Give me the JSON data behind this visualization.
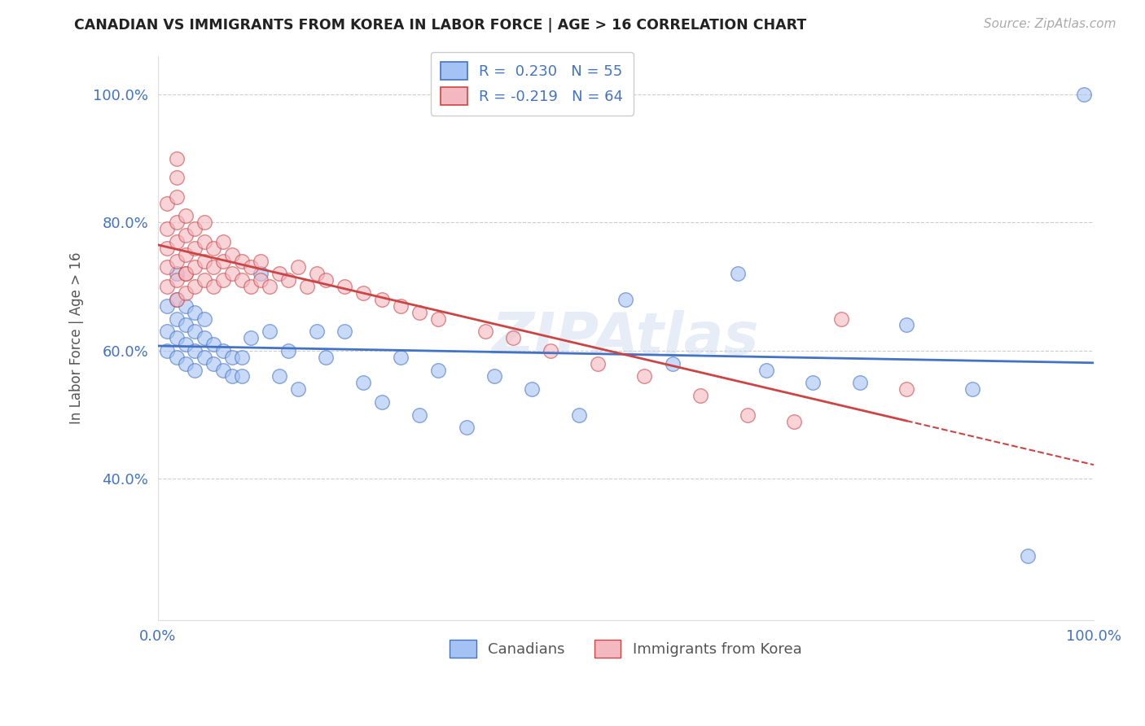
{
  "title": "CANADIAN VS IMMIGRANTS FROM KOREA IN LABOR FORCE | AGE > 16 CORRELATION CHART",
  "source": "Source: ZipAtlas.com",
  "ylabel": "In Labor Force | Age > 16",
  "legend_bottom": [
    "Canadians",
    "Immigrants from Korea"
  ],
  "r_canadian": 0.23,
  "n_canadian": 55,
  "r_korean": -0.219,
  "n_korean": 64,
  "xlim": [
    0.0,
    1.0
  ],
  "ylim": [
    0.18,
    1.06
  ],
  "ytick_positions": [
    0.4,
    0.6,
    0.8,
    1.0
  ],
  "ytick_labels": [
    "40.0%",
    "60.0%",
    "80.0%",
    "100.0%"
  ],
  "color_canadian": "#a4c2f4",
  "color_korean": "#f4b8c1",
  "color_trend_canadian": "#4472c4",
  "color_trend_korean": "#cc4444",
  "background_color": "#ffffff",
  "canadians_x": [
    0.01,
    0.01,
    0.01,
    0.02,
    0.02,
    0.02,
    0.02,
    0.02,
    0.03,
    0.03,
    0.03,
    0.03,
    0.04,
    0.04,
    0.04,
    0.04,
    0.05,
    0.05,
    0.05,
    0.06,
    0.06,
    0.07,
    0.07,
    0.08,
    0.08,
    0.09,
    0.09,
    0.1,
    0.11,
    0.12,
    0.13,
    0.14,
    0.15,
    0.17,
    0.18,
    0.2,
    0.22,
    0.24,
    0.26,
    0.28,
    0.3,
    0.33,
    0.36,
    0.4,
    0.45,
    0.5,
    0.55,
    0.62,
    0.65,
    0.7,
    0.75,
    0.8,
    0.87,
    0.93,
    0.99
  ],
  "canadians_y": [
    0.6,
    0.63,
    0.67,
    0.59,
    0.62,
    0.65,
    0.68,
    0.72,
    0.58,
    0.61,
    0.64,
    0.67,
    0.57,
    0.6,
    0.63,
    0.66,
    0.59,
    0.62,
    0.65,
    0.58,
    0.61,
    0.57,
    0.6,
    0.56,
    0.59,
    0.56,
    0.59,
    0.62,
    0.72,
    0.63,
    0.56,
    0.6,
    0.54,
    0.63,
    0.59,
    0.63,
    0.55,
    0.52,
    0.59,
    0.5,
    0.57,
    0.48,
    0.56,
    0.54,
    0.5,
    0.68,
    0.58,
    0.72,
    0.57,
    0.55,
    0.55,
    0.64,
    0.54,
    0.28,
    1.0
  ],
  "koreans_x": [
    0.01,
    0.01,
    0.01,
    0.01,
    0.01,
    0.02,
    0.02,
    0.02,
    0.02,
    0.02,
    0.02,
    0.02,
    0.02,
    0.03,
    0.03,
    0.03,
    0.03,
    0.03,
    0.03,
    0.04,
    0.04,
    0.04,
    0.04,
    0.05,
    0.05,
    0.05,
    0.05,
    0.06,
    0.06,
    0.06,
    0.07,
    0.07,
    0.07,
    0.08,
    0.08,
    0.09,
    0.09,
    0.1,
    0.1,
    0.11,
    0.11,
    0.12,
    0.13,
    0.14,
    0.15,
    0.16,
    0.17,
    0.18,
    0.2,
    0.22,
    0.24,
    0.26,
    0.28,
    0.3,
    0.35,
    0.38,
    0.42,
    0.47,
    0.52,
    0.58,
    0.63,
    0.68,
    0.73,
    0.8
  ],
  "koreans_y": [
    0.7,
    0.73,
    0.76,
    0.79,
    0.83,
    0.68,
    0.71,
    0.74,
    0.77,
    0.8,
    0.84,
    0.87,
    0.9,
    0.69,
    0.72,
    0.75,
    0.78,
    0.81,
    0.72,
    0.7,
    0.73,
    0.76,
    0.79,
    0.71,
    0.74,
    0.77,
    0.8,
    0.7,
    0.73,
    0.76,
    0.71,
    0.74,
    0.77,
    0.72,
    0.75,
    0.71,
    0.74,
    0.7,
    0.73,
    0.71,
    0.74,
    0.7,
    0.72,
    0.71,
    0.73,
    0.7,
    0.72,
    0.71,
    0.7,
    0.69,
    0.68,
    0.67,
    0.66,
    0.65,
    0.63,
    0.62,
    0.6,
    0.58,
    0.56,
    0.53,
    0.5,
    0.49,
    0.65,
    0.54
  ]
}
